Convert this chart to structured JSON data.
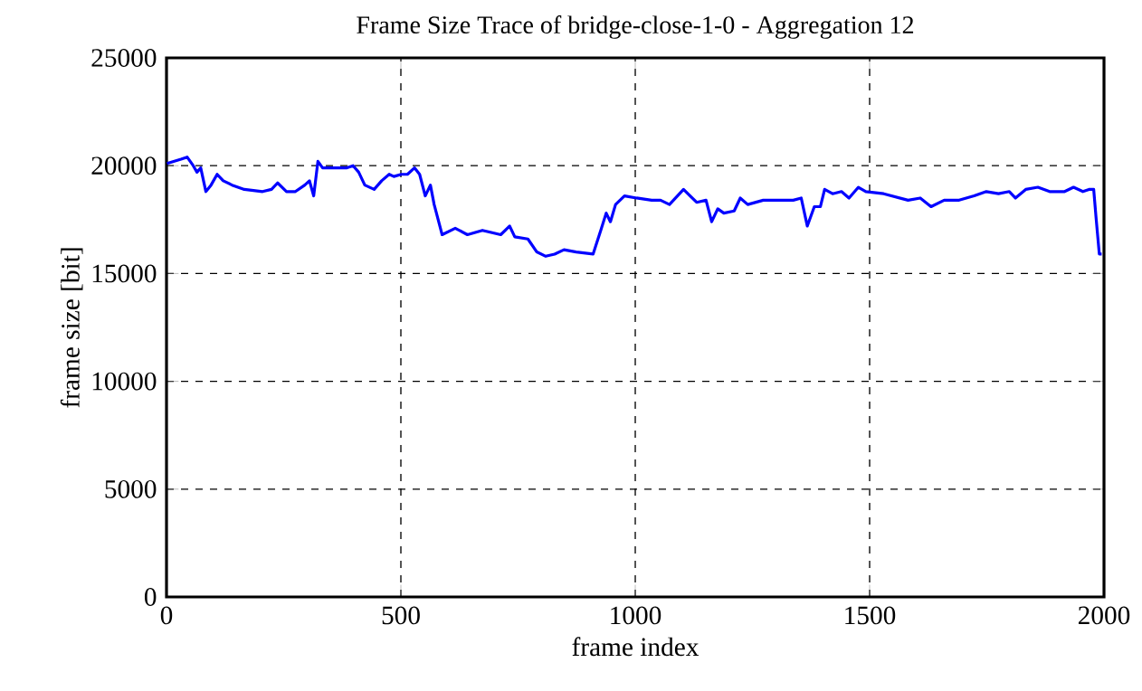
{
  "chart_data": {
    "type": "line",
    "title": "Frame Size Trace of bridge-close-1-0 - Aggregation 12",
    "xlabel": "frame index",
    "ylabel": "frame size [bit]",
    "xlim": [
      0,
      2000
    ],
    "ylim": [
      0,
      25000
    ],
    "xticks": [
      0,
      500,
      1000,
      1500,
      2000
    ],
    "yticks": [
      0,
      5000,
      10000,
      15000,
      20000,
      25000
    ],
    "grid": true,
    "line_style": "solid",
    "marker": "none",
    "series": [
      {
        "color": "#0000ff",
        "x": [
          1,
          31,
          44,
          57,
          65,
          73,
          84,
          95,
          108,
          121,
          140,
          166,
          205,
          224,
          237,
          256,
          275,
          295,
          305,
          314,
          323,
          333,
          359,
          385,
          398,
          410,
          423,
          443,
          459,
          475,
          485,
          501,
          514,
          529,
          540,
          552,
          563,
          571,
          588,
          616,
          642,
          674,
          713,
          732,
          743,
          771,
          790,
          809,
          828,
          848,
          874,
          910,
          925,
          938,
          947,
          958,
          977,
          1003,
          1035,
          1054,
          1073,
          1103,
          1131,
          1151,
          1163,
          1176,
          1189,
          1211,
          1224,
          1240,
          1273,
          1311,
          1337,
          1354,
          1367,
          1382,
          1395,
          1404,
          1421,
          1440,
          1456,
          1476,
          1492,
          1530,
          1582,
          1608,
          1631,
          1659,
          1691,
          1723,
          1749,
          1775,
          1798,
          1811,
          1833,
          1859,
          1884,
          1916,
          1935,
          1955,
          1968,
          1978,
          1983,
          1990,
          1995
        ],
        "values": [
          20100,
          20300,
          20400,
          20000,
          19700,
          19900,
          18800,
          19100,
          19600,
          19300,
          19100,
          18900,
          18800,
          18900,
          19200,
          18800,
          18800,
          19100,
          19300,
          18600,
          20200,
          19900,
          19900,
          19900,
          20000,
          19700,
          19100,
          18900,
          19300,
          19600,
          19500,
          19600,
          19600,
          19900,
          19600,
          18600,
          19100,
          18200,
          16800,
          17100,
          16800,
          17000,
          16800,
          17200,
          16700,
          16600,
          16000,
          15800,
          15900,
          16100,
          16000,
          15900,
          16900,
          17800,
          17400,
          18200,
          18600,
          18500,
          18400,
          18400,
          18200,
          18900,
          18300,
          18400,
          17400,
          18000,
          17800,
          17900,
          18500,
          18200,
          18400,
          18400,
          18400,
          18500,
          17200,
          18100,
          18100,
          18900,
          18700,
          18800,
          18500,
          19000,
          18800,
          18700,
          18400,
          18500,
          18100,
          18400,
          18400,
          18600,
          18800,
          18700,
          18800,
          18500,
          18900,
          19000,
          18800,
          18800,
          19000,
          18800,
          18900,
          18900,
          17600,
          15900,
          15900
        ]
      }
    ]
  }
}
